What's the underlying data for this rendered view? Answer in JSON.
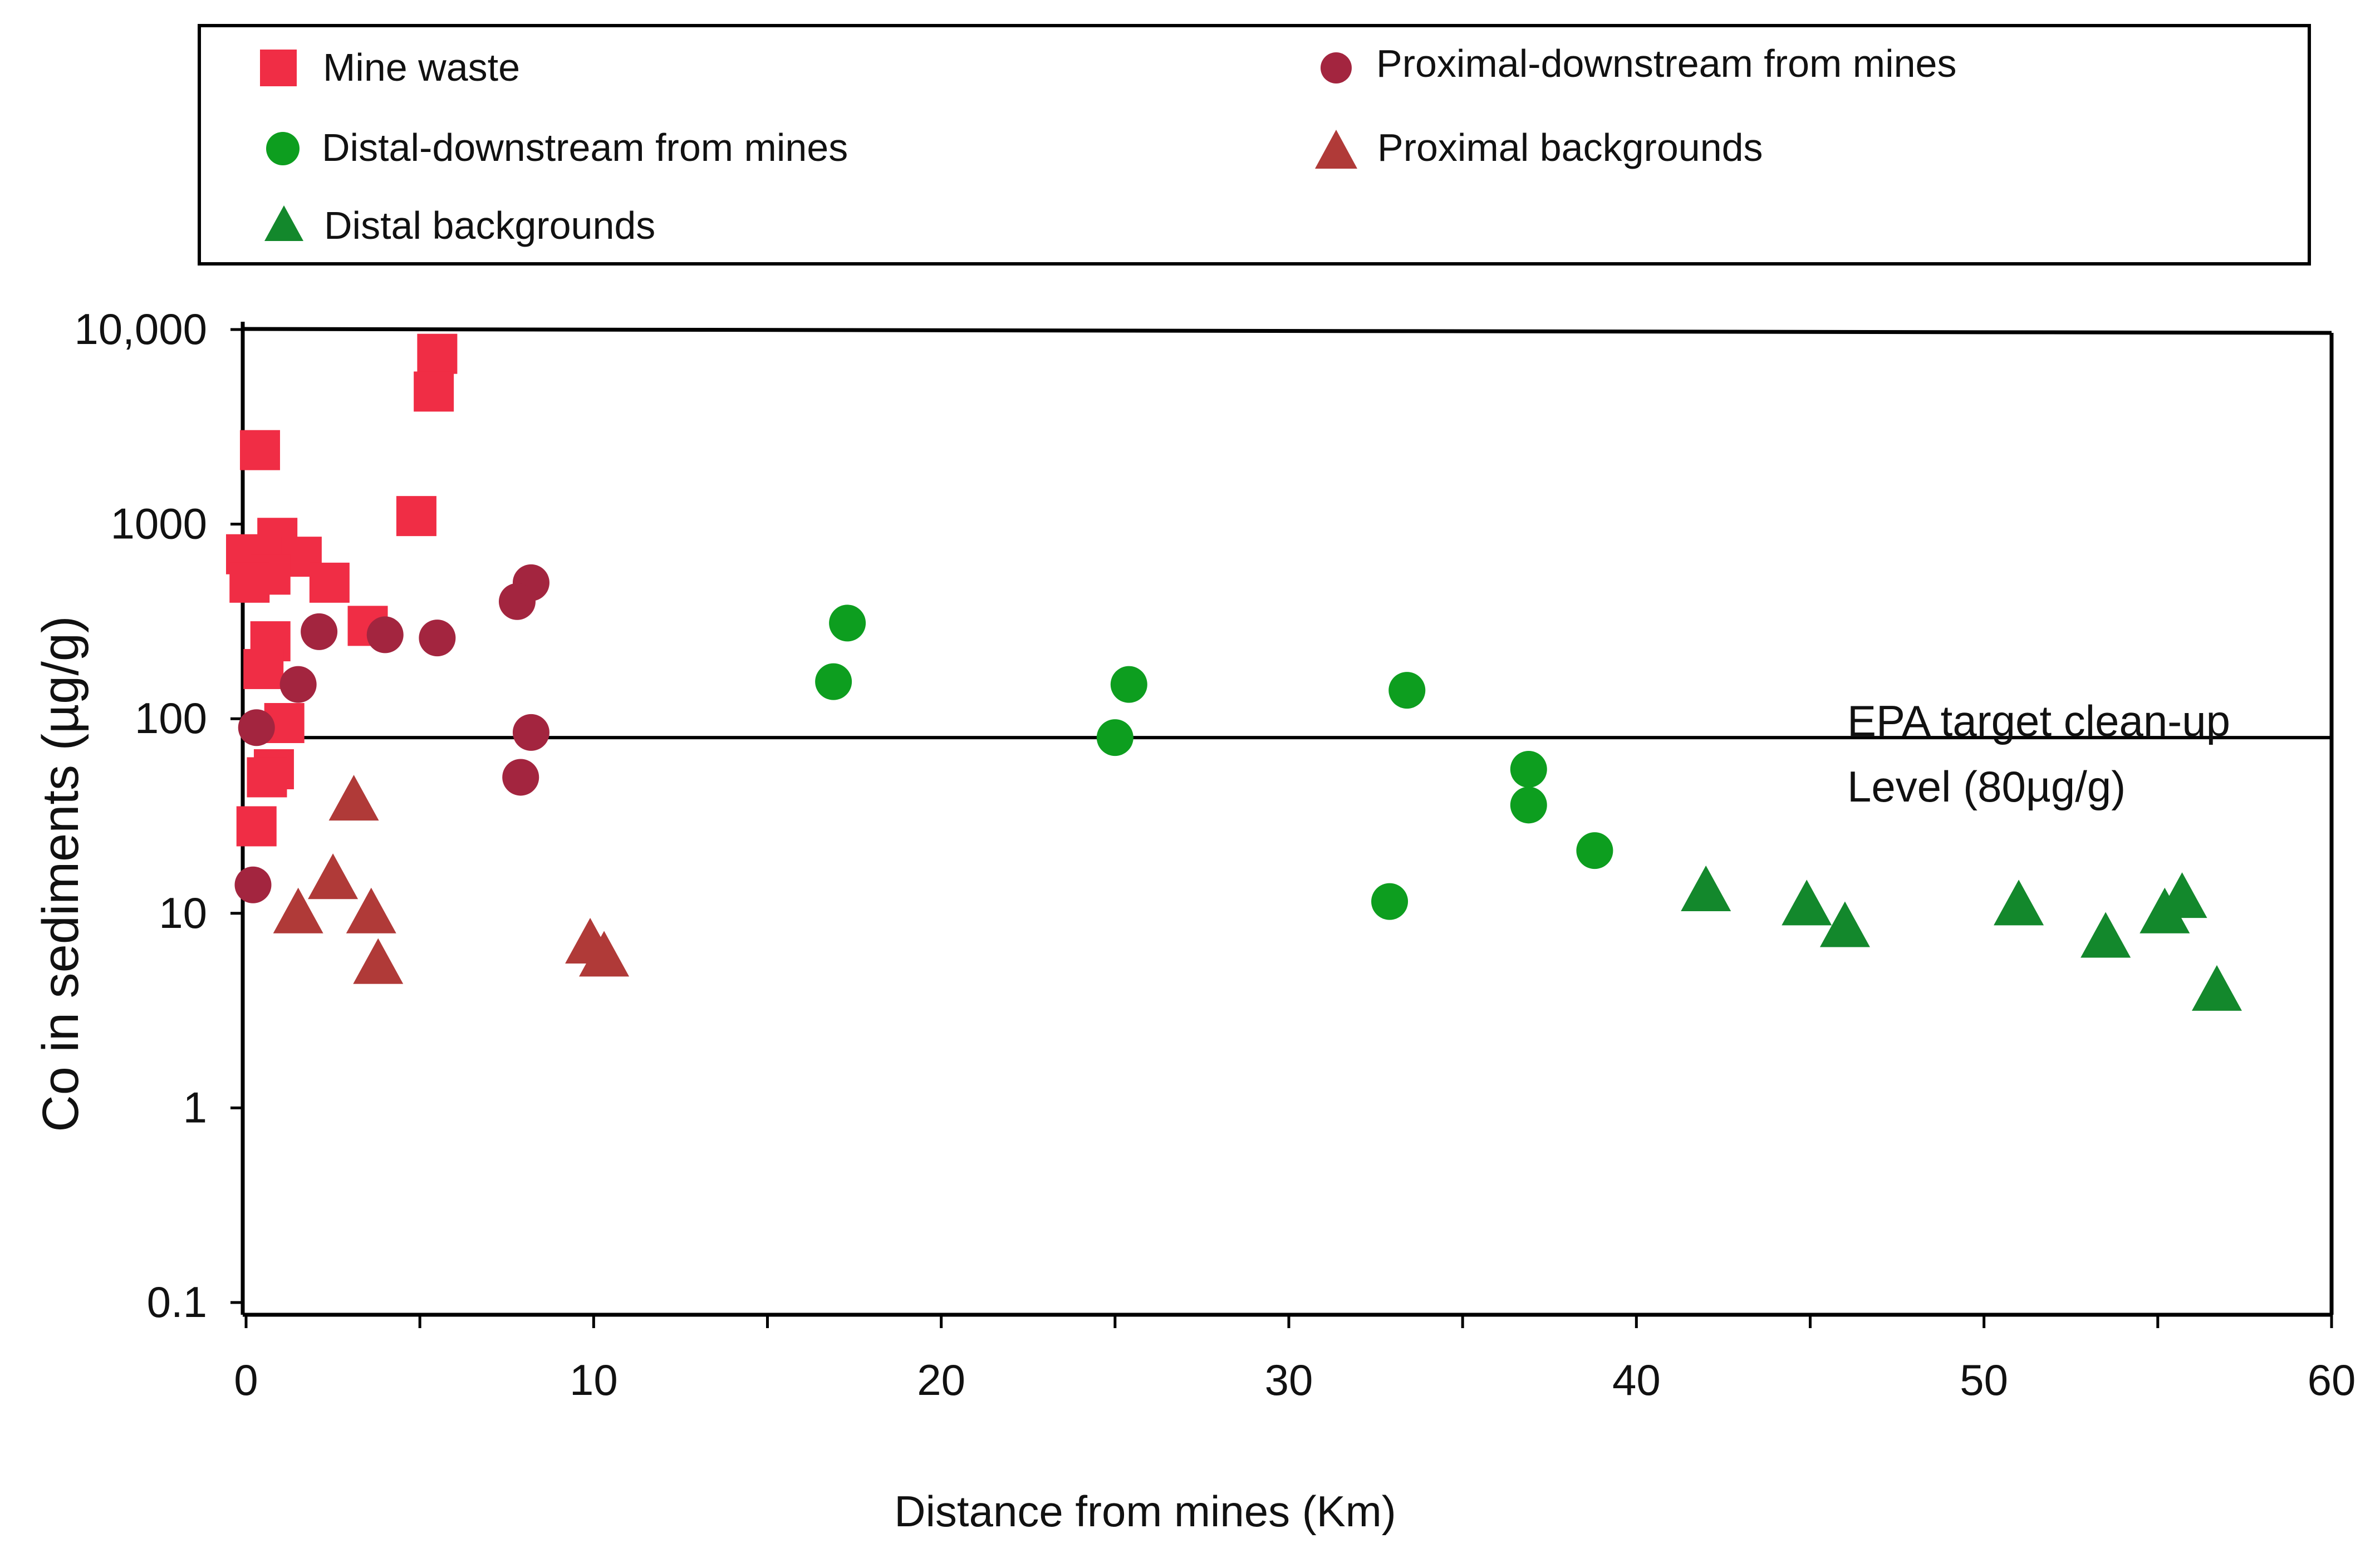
{
  "chart_data": {
    "type": "scatter",
    "title": "",
    "xlabel": "Distance from mines (Km)",
    "ylabel": "Co in sediments (µg/g)",
    "xlim": [
      0,
      60
    ],
    "ylim": [
      0.1,
      10000
    ],
    "yscale": "log",
    "x_ticks": [
      0,
      10,
      20,
      30,
      40,
      50,
      60
    ],
    "y_ticks": [
      {
        "value": 0.1,
        "label": "0.1"
      },
      {
        "value": 1,
        "label": "1"
      },
      {
        "value": 10,
        "label": "10"
      },
      {
        "value": 100,
        "label": "100"
      },
      {
        "value": 1000,
        "label": "1000"
      },
      {
        "value": 10000,
        "label": "10,000"
      }
    ],
    "grid": false,
    "legend_position": "top",
    "reference_line": {
      "value": 80,
      "label_line1": "EPA target clean-up",
      "label_line2": "Level (80µg/g)"
    },
    "series": [
      {
        "name": "Mine waste",
        "marker": "square",
        "color": "#f02d45",
        "points": [
          [
            5.5,
            7500
          ],
          [
            5.4,
            4800
          ],
          [
            0.4,
            2400
          ],
          [
            4.9,
            1100
          ],
          [
            0.9,
            850
          ],
          [
            0.0,
            700
          ],
          [
            1.6,
            680
          ],
          [
            0.7,
            550
          ],
          [
            0.1,
            500
          ],
          [
            2.4,
            500
          ],
          [
            3.5,
            300
          ],
          [
            0.7,
            250
          ],
          [
            0.5,
            180
          ],
          [
            1.1,
            95
          ],
          [
            0.8,
            55
          ],
          [
            0.6,
            50
          ],
          [
            0.3,
            28
          ]
        ]
      },
      {
        "name": "Proximal-downstream from mines",
        "marker": "circle",
        "color": "#a3253f",
        "points": [
          [
            8.2,
            500
          ],
          [
            7.8,
            400
          ],
          [
            2.1,
            280
          ],
          [
            4.0,
            270
          ],
          [
            5.5,
            260
          ],
          [
            1.5,
            150
          ],
          [
            0.3,
            90
          ],
          [
            8.2,
            85
          ],
          [
            7.9,
            50
          ],
          [
            0.2,
            14
          ]
        ]
      },
      {
        "name": "Distal-downstream from mines",
        "marker": "circle",
        "color": "#0d9e1f",
        "points": [
          [
            17.3,
            310
          ],
          [
            16.9,
            155
          ],
          [
            25.4,
            150
          ],
          [
            33.4,
            140
          ],
          [
            25.0,
            80
          ],
          [
            36.9,
            55
          ],
          [
            36.9,
            36
          ],
          [
            38.8,
            21
          ],
          [
            32.9,
            11.5
          ]
        ]
      },
      {
        "name": "Proximal backgrounds",
        "marker": "triangle",
        "color": "#b03a38",
        "points": [
          [
            3.1,
            38
          ],
          [
            2.5,
            15
          ],
          [
            1.5,
            10
          ],
          [
            3.6,
            10
          ],
          [
            9.9,
            7
          ],
          [
            10.3,
            6
          ],
          [
            3.8,
            5.5
          ]
        ]
      },
      {
        "name": "Distal backgrounds",
        "marker": "triangle",
        "color": "#13882c",
        "points": [
          [
            42.0,
            13
          ],
          [
            44.9,
            11
          ],
          [
            46.0,
            8.5
          ],
          [
            51.0,
            11
          ],
          [
            53.5,
            7.5
          ],
          [
            55.2,
            10
          ],
          [
            55.7,
            12
          ],
          [
            56.7,
            4
          ]
        ]
      }
    ]
  }
}
